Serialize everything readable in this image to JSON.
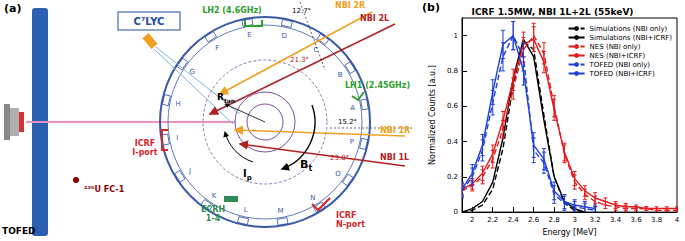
{
  "diagram": {
    "panel_label": "(a)",
    "detectors": {
      "c7lyc": "C⁷LYC",
      "tofed": "TOFED",
      "fission_chamber": "²³⁵U FC-1"
    },
    "heating": {
      "icrf_i": [
        "ICRF",
        "I-port"
      ],
      "icrf_n": [
        "ICRF",
        "N-port"
      ],
      "ecrh": [
        "ECRH",
        "1-4"
      ],
      "lh2": "LH2 (4.6GHz)",
      "lh1": "LH1 (2.45GHz)"
    },
    "beams": {
      "nbi_2r": "NBI 2R",
      "nbi_2l": "NBI 2L",
      "nbi_1r": "NBI 1R",
      "nbi_1l": "NBI 1L"
    },
    "angles": {
      "a2r": "12.7°",
      "a2l": "21.3°",
      "a1r": "15.2°",
      "a1l": "23.8°"
    },
    "symbols": {
      "bt": {
        "main": "B",
        "sub": "t"
      },
      "ip": {
        "main": "I",
        "sub": "p"
      },
      "rtan": {
        "main": "R",
        "sub": "tan"
      }
    },
    "ports": [
      "A",
      "B",
      "C",
      "D",
      "E",
      "F",
      "G",
      "H",
      "I",
      "J",
      "K",
      "L",
      "M",
      "N",
      "O",
      "P"
    ]
  },
  "chart_data": {
    "type": "line",
    "title": "ICRF 1.5MW, NBI 1L+2L (55keV)",
    "annotations": [
      {
        "text": "(b)"
      }
    ],
    "xlabel": "Energy [MeV]",
    "ylabel": "Normalized Counts [a.u.]",
    "xlim": [
      1.9,
      4
    ],
    "xticks": [
      2,
      2.2,
      2.4,
      2.6,
      2.8,
      3,
      3.2,
      3.4,
      3.6,
      3.8,
      4
    ],
    "ylim": [
      0,
      1.1
    ],
    "yticks": [
      0,
      0.2,
      0.4,
      0.6,
      0.8,
      1
    ],
    "grid": false,
    "legend": "upper right",
    "series": [
      {
        "name": "Simulations (NBI only)",
        "color": "#000000",
        "line_style": "dashed",
        "x": [
          1.9,
          2.0,
          2.1,
          2.2,
          2.3,
          2.4,
          2.5,
          2.6,
          2.7,
          2.8,
          2.9,
          3.0,
          3.1
        ],
        "values": [
          0.0,
          0.01,
          0.04,
          0.13,
          0.36,
          0.72,
          0.97,
          0.92,
          0.55,
          0.2,
          0.05,
          0.01,
          0.0
        ]
      },
      {
        "name": "Simulations (NBI+ICRF)",
        "color": "#000000",
        "line_style": "solid",
        "x": [
          1.9,
          2.0,
          2.1,
          2.2,
          2.3,
          2.4,
          2.5,
          2.6,
          2.7,
          2.8,
          2.9,
          3.0,
          3.1
        ],
        "values": [
          0.0,
          0.02,
          0.06,
          0.17,
          0.42,
          0.76,
          0.98,
          0.88,
          0.52,
          0.2,
          0.06,
          0.02,
          0.0
        ]
      },
      {
        "name": "NES (NBI only)",
        "color": "#e41a1c",
        "line_style": "dashed",
        "x": [
          1.9,
          2.0,
          2.1,
          2.2,
          2.3,
          2.4,
          2.5,
          2.6,
          2.7,
          2.8,
          2.9,
          3.0,
          3.1,
          3.2,
          3.3,
          3.4,
          3.5,
          3.6,
          3.7,
          3.8,
          3.9,
          4.0
        ],
        "values": [
          0.12,
          0.15,
          0.2,
          0.3,
          0.47,
          0.7,
          0.92,
          1.0,
          0.9,
          0.6,
          0.33,
          0.17,
          0.1,
          0.06,
          0.04,
          0.03,
          0.02,
          0.02,
          0.02,
          0.01,
          0.01,
          0.01
        ],
        "errors": [
          0.03,
          0.03,
          0.04,
          0.05,
          0.05,
          0.06,
          0.07,
          0.07,
          0.06,
          0.06,
          0.05,
          0.04,
          0.03,
          0.03,
          0.02,
          0.02,
          0.02,
          0.01,
          0.01,
          0.01,
          0.01,
          0.01
        ]
      },
      {
        "name": "NES (NBI+ICRF)",
        "color": "#e41a1c",
        "line_style": "solid",
        "x": [
          1.9,
          2.0,
          2.1,
          2.2,
          2.3,
          2.4,
          2.5,
          2.6,
          2.7,
          2.8,
          2.9,
          3.0,
          3.1,
          3.2,
          3.3,
          3.4,
          3.5,
          3.6,
          3.7,
          3.8,
          3.9,
          4.0
        ],
        "values": [
          0.13,
          0.16,
          0.22,
          0.33,
          0.52,
          0.75,
          0.95,
          0.98,
          0.85,
          0.58,
          0.34,
          0.19,
          0.12,
          0.08,
          0.06,
          0.04,
          0.03,
          0.03,
          0.02,
          0.02,
          0.02,
          0.02
        ],
        "errors": [
          0.03,
          0.03,
          0.04,
          0.05,
          0.05,
          0.06,
          0.07,
          0.07,
          0.06,
          0.06,
          0.05,
          0.04,
          0.03,
          0.03,
          0.02,
          0.02,
          0.02,
          0.01,
          0.01,
          0.01,
          0.01,
          0.01
        ]
      },
      {
        "name": "TOFED (NBI only)",
        "color": "#1f3fd8",
        "line_style": "dashed",
        "x": [
          1.9,
          2.0,
          2.1,
          2.2,
          2.3,
          2.4,
          2.5,
          2.6,
          2.7,
          2.8,
          2.9,
          3.0,
          3.1,
          3.2
        ],
        "values": [
          0.12,
          0.2,
          0.35,
          0.62,
          0.88,
          1.0,
          0.88,
          0.35,
          0.28,
          0.1,
          0.05,
          0.03,
          0.02,
          0.01
        ],
        "errors": [
          0.04,
          0.05,
          0.06,
          0.07,
          0.08,
          0.08,
          0.08,
          0.07,
          0.06,
          0.05,
          0.04,
          0.03,
          0.03,
          0.02
        ]
      },
      {
        "name": "TOFED (NBI+ICRF)",
        "color": "#1f3fd8",
        "line_style": "solid",
        "x": [
          1.9,
          2.0,
          2.1,
          2.2,
          2.3,
          2.4,
          2.5,
          2.6,
          2.7,
          2.8,
          2.9,
          3.0,
          3.1,
          3.2
        ],
        "values": [
          0.13,
          0.22,
          0.38,
          0.68,
          0.95,
          1.0,
          0.8,
          0.38,
          0.3,
          0.12,
          0.06,
          0.04,
          0.03,
          0.02
        ],
        "errors": [
          0.04,
          0.05,
          0.06,
          0.07,
          0.08,
          0.08,
          0.08,
          0.07,
          0.06,
          0.05,
          0.04,
          0.03,
          0.03,
          0.02
        ]
      }
    ]
  }
}
